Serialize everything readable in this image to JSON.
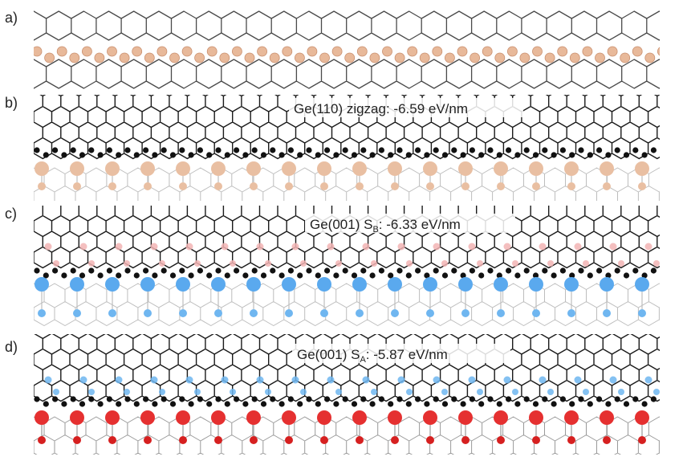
{
  "figure": {
    "panels": [
      {
        "id": "a",
        "label": "a)",
        "annotation": null,
        "colors": {
          "lattice": "#4a4a4a",
          "atoms": "#e8b99a",
          "atom_stroke": "#c98f6e"
        }
      },
      {
        "id": "b",
        "label": "b)",
        "annotation": {
          "prefix": "Ge(110) zigzag: ",
          "sub_main": "",
          "sub": "",
          "value": "-6.59 eV/nm"
        },
        "colors": {
          "graphene": "#1a1a1a",
          "edge_atoms": "#111111",
          "substrate_atoms": "#e9bfa2",
          "substrate_bonds": "#bdbdbd"
        }
      },
      {
        "id": "c",
        "label": "c)",
        "annotation": {
          "prefix": "Ge(001) ",
          "sub_main": "S",
          "sub": "B",
          "value": ": -6.33 eV/nm"
        },
        "colors": {
          "graphene": "#1a1a1a",
          "edge_atoms": "#111111",
          "top_atoms": "#f2b4b4",
          "substrate_atoms": "#5aa9ee",
          "lower_atoms": "#6fb6f0",
          "substrate_bonds": "#bdbdbd"
        }
      },
      {
        "id": "d",
        "label": "d)",
        "annotation": {
          "prefix": "Ge(001) ",
          "sub_main": "S",
          "sub": "A",
          "value": ": -5.87 eV/nm"
        },
        "colors": {
          "graphene": "#1a1a1a",
          "edge_atoms": "#111111",
          "top_atoms": "#6fb6f0",
          "substrate_atoms": "#e53030",
          "lower_atoms": "#d62020",
          "substrate_bonds": "#9a9a9a"
        }
      }
    ]
  }
}
